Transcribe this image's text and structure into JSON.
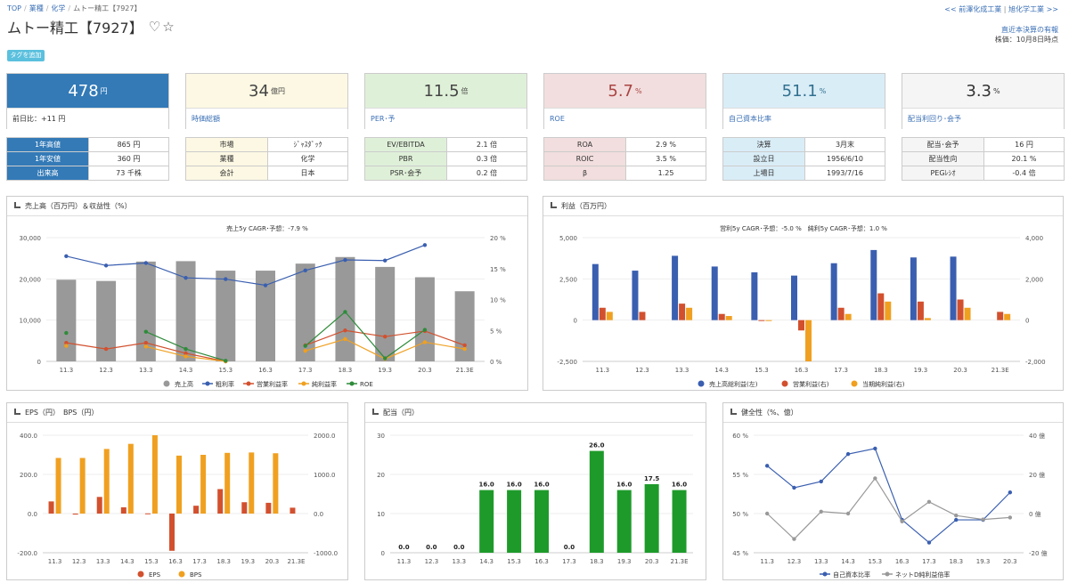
{
  "breadcrumb": {
    "top": "TOP",
    "industry": "業種",
    "sector": "化学",
    "current": "ムトー精工【7927】"
  },
  "related": {
    "prev": "<< 前澤化成工業",
    "sep": "|",
    "next": "旭化学工業 >>"
  },
  "title": {
    "name": "ムトー精工【7927】",
    "heart": "♡",
    "star": "☆"
  },
  "meta": {
    "line1": "直近本決算の有報",
    "line2": "株価：10月8日時点"
  },
  "tag_button": "タグを追加",
  "cards": [
    {
      "value": "478",
      "unit": "円",
      "label": "前日比：+11 円",
      "bg": "#337ab7",
      "fg": "#ffffff"
    },
    {
      "value": "34",
      "unit": "億円",
      "label": "時価総額",
      "bg": "#fcf8e3",
      "fg": "#444444"
    },
    {
      "value": "11.5",
      "unit": "倍",
      "label": "PER･予",
      "bg": "#dff0d8",
      "fg": "#444444"
    },
    {
      "value": "5.7",
      "unit": "%",
      "label": "ROE",
      "bg": "#f2dede",
      "fg": "#a94442"
    },
    {
      "value": "51.1",
      "unit": "%",
      "label": "自己資本比率",
      "bg": "#d9edf7",
      "fg": "#31708f"
    },
    {
      "value": "3.3",
      "unit": "%",
      "label": "配当利回り･会予",
      "bg": "#f5f5f5",
      "fg": "#333333"
    }
  ],
  "tables": [
    {
      "rows": [
        [
          "1年高値",
          "865 円"
        ],
        [
          "1年安値",
          "360 円"
        ],
        [
          "出来高",
          "73 千株"
        ]
      ],
      "kbg": "#337ab7",
      "kfg": "#ffffff"
    },
    {
      "rows": [
        [
          "市場",
          "ｼﾞｬｽﾀﾞｯｸ"
        ],
        [
          "業種",
          "化学"
        ],
        [
          "会計",
          "日本"
        ]
      ],
      "kbg": "#fcf8e3",
      "kfg": "#333333"
    },
    {
      "rows": [
        [
          "EV/EBITDA",
          "2.1 倍"
        ],
        [
          "PBR",
          "0.3 倍"
        ],
        [
          "PSR･会予",
          "0.2 倍"
        ]
      ],
      "kbg": "#dff0d8",
      "kfg": "#333333"
    },
    {
      "rows": [
        [
          "ROA",
          "2.9 %"
        ],
        [
          "ROIC",
          "3.5 %"
        ],
        [
          "β",
          "1.25"
        ]
      ],
      "kbg": "#f2dede",
      "kfg": "#333333"
    },
    {
      "rows": [
        [
          "決算",
          "3月末"
        ],
        [
          "設立日",
          "1956/6/10"
        ],
        [
          "上場日",
          "1993/7/16"
        ]
      ],
      "kbg": "#d9edf7",
      "kfg": "#333333"
    },
    {
      "rows": [
        [
          "配当･会予",
          "16 円"
        ],
        [
          "配当性向",
          "20.1 %"
        ],
        [
          "PEGﾚｼｵ",
          "-0.4 倍"
        ]
      ],
      "kbg": "#f5f5f5",
      "kfg": "#333333"
    }
  ],
  "panels": {
    "sales": "売上高（百万円）＆収益性（%）",
    "profit": "利益（百万円）",
    "eps": "EPS（円）　BPS（円）",
    "div": "配当（円）",
    "health": "健全性（%、億）"
  },
  "chart_data": [
    {
      "type": "bar",
      "title": "売上5y CAGR･予想：-7.9 %",
      "categories": [
        "11.3",
        "12.3",
        "13.3",
        "14.3",
        "15.3",
        "16.3",
        "17.3",
        "18.3",
        "19.3",
        "20.3",
        "21.3E"
      ],
      "y_left_ticks": [
        "0",
        "10,000",
        "20,000",
        "30,000"
      ],
      "y_right_ticks": [
        "0 %",
        "5 %",
        "10 %",
        "15 %",
        "20 %"
      ],
      "ylim": [
        0,
        30000
      ],
      "y2lim": [
        0,
        20
      ],
      "series": [
        {
          "name": "売上高",
          "kind": "bar",
          "axis": "left",
          "color": "#999999",
          "values": [
            19800,
            19500,
            24200,
            24300,
            22000,
            22000,
            23700,
            25300,
            22900,
            20400,
            17000
          ]
        },
        {
          "name": "粗利率",
          "kind": "line",
          "axis": "right",
          "color": "#3a5fb0",
          "values": [
            17.0,
            15.5,
            15.9,
            13.5,
            13.3,
            12.3,
            14.7,
            16.4,
            16.3,
            18.8,
            null
          ]
        },
        {
          "name": "営業利益率",
          "kind": "line",
          "axis": "right",
          "color": "#d2502e",
          "values": [
            3.0,
            2.0,
            3.0,
            1.3,
            0.0,
            null,
            2.6,
            5.0,
            4.0,
            4.9,
            2.6
          ]
        },
        {
          "name": "純利益率",
          "kind": "line",
          "axis": "right",
          "color": "#f0a020",
          "values": [
            2.5,
            null,
            2.4,
            0.8,
            0.0,
            null,
            1.7,
            3.6,
            0.4,
            3.1,
            2.0
          ]
        },
        {
          "name": "ROE",
          "kind": "line",
          "axis": "right",
          "color": "#2e8b3a",
          "values": [
            4.6,
            null,
            4.8,
            2.0,
            0.1,
            null,
            2.5,
            8.0,
            0.5,
            5.1,
            null
          ]
        }
      ]
    },
    {
      "type": "bar",
      "title": "営利5y CAGR･予想：-5.0 %　純利5y CAGR･予想：1.0 %",
      "categories": [
        "11.3",
        "12.3",
        "13.3",
        "14.3",
        "15.3",
        "16.3",
        "17.3",
        "18.3",
        "19.3",
        "20.3",
        "21.3E"
      ],
      "y_left_ticks": [
        "-2,500",
        "0",
        "2,500",
        "5,000"
      ],
      "y_right_ticks": [
        "-2,000",
        "0",
        "2,000",
        "4,000"
      ],
      "ylim": [
        -2500,
        5000
      ],
      "y2lim": [
        -2000,
        4000
      ],
      "series": [
        {
          "name": "売上高総利益(左)",
          "axis": "left",
          "color": "#3a5fb0",
          "values": [
            3400,
            3000,
            3900,
            3250,
            2900,
            2700,
            3450,
            4250,
            3800,
            3850,
            null
          ]
        },
        {
          "name": "営業利益(右)",
          "axis": "right",
          "color": "#d2502e",
          "values": [
            600,
            400,
            800,
            300,
            0,
            -500,
            600,
            1300,
            900,
            1000,
            400
          ]
        },
        {
          "name": "当期純利益(右)",
          "axis": "right",
          "color": "#f0a020",
          "values": [
            400,
            null,
            600,
            200,
            0,
            -2000,
            300,
            900,
            100,
            600,
            300
          ]
        }
      ]
    },
    {
      "type": "bar",
      "categories": [
        "11.3",
        "12.3",
        "13.3",
        "14.3",
        "15.3",
        "16.3",
        "17.3",
        "18.3",
        "19.3",
        "20.3",
        "21.3E"
      ],
      "y_left_ticks": [
        "-200.0",
        "0.0",
        "200.0",
        "400.0"
      ],
      "y_right_ticks": [
        "-1000.0",
        "0.0",
        "1000.0",
        "2000.0"
      ],
      "ylim": [
        -200,
        400
      ],
      "y2lim": [
        -1000,
        2000
      ],
      "series": [
        {
          "name": "EPS",
          "axis": "left",
          "color": "#d2502e",
          "values": [
            62,
            -5,
            85,
            32,
            1,
            -190,
            40,
            125,
            58,
            55,
            30
          ]
        },
        {
          "name": "BPS",
          "axis": "right",
          "color": "#f0a020",
          "values": [
            1420,
            1420,
            1650,
            1780,
            2000,
            1480,
            1500,
            1550,
            1560,
            1540,
            null
          ]
        }
      ]
    },
    {
      "type": "bar",
      "categories": [
        "11.3",
        "12.3",
        "13.3",
        "14.3",
        "15.3",
        "16.3",
        "17.3",
        "18.3",
        "19.3",
        "20.3",
        "21.3E"
      ],
      "y_ticks": [
        "0",
        "10",
        "20",
        "30"
      ],
      "ylim": [
        0,
        30
      ],
      "series": [
        {
          "name": "配当",
          "color": "#1e9a2a",
          "values": [
            0,
            0,
            0,
            16,
            16,
            16,
            0,
            26,
            16,
            17.5,
            16
          ],
          "labels": [
            "0.0",
            "0.0",
            "0.0",
            "16.0",
            "16.0",
            "16.0",
            "0.0",
            "26.0",
            "16.0",
            "17.5",
            "16.0"
          ]
        }
      ]
    },
    {
      "type": "line",
      "categories": [
        "11.3",
        "12.3",
        "13.3",
        "14.3",
        "15.3",
        "16.3",
        "17.3",
        "18.3",
        "19.3",
        "20.3"
      ],
      "y_left_ticks": [
        "45 %",
        "50 %",
        "55 %",
        "60 %"
      ],
      "y_right_ticks": [
        "-20 億",
        "0 億",
        "20 億",
        "40 億"
      ],
      "ylim": [
        45,
        60
      ],
      "y2lim": [
        -20,
        40
      ],
      "series": [
        {
          "name": "自己資本比率",
          "axis": "left",
          "color": "#3a5fb0",
          "values": [
            56.1,
            53.3,
            54.1,
            57.6,
            58.3,
            49.2,
            46.3,
            49.2,
            49.2,
            52.7
          ]
        },
        {
          "name": "ネットD純利益倍率",
          "axis": "right",
          "color": "#999999",
          "values": [
            0,
            -13,
            1,
            0,
            18,
            -4,
            6,
            -1,
            -3,
            -2
          ]
        }
      ]
    }
  ]
}
